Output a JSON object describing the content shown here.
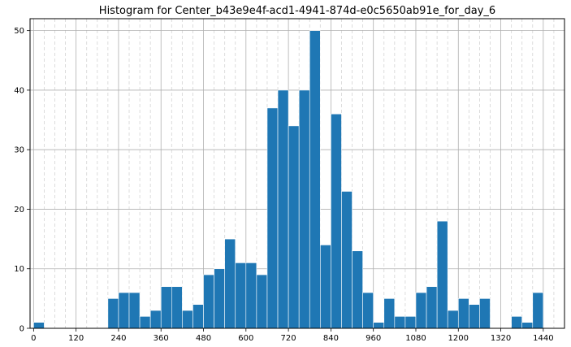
{
  "chart_data": {
    "type": "bar",
    "title": "Histogram for Center_b43e9e4f-acd1-4941-874d-e0c5650ab91e_for_day_6",
    "xlabel": "",
    "ylabel": "",
    "xlim": [
      -10,
      1500
    ],
    "ylim": [
      0,
      52
    ],
    "grid": true,
    "bin_width": 30,
    "bin_left_edges": [
      0,
      30,
      60,
      90,
      120,
      150,
      180,
      210,
      240,
      270,
      300,
      330,
      360,
      390,
      420,
      450,
      480,
      510,
      540,
      570,
      600,
      630,
      660,
      690,
      720,
      750,
      780,
      810,
      840,
      870,
      900,
      930,
      960,
      990,
      1020,
      1050,
      1080,
      1110,
      1140,
      1170,
      1200,
      1230,
      1260,
      1290,
      1320,
      1350,
      1380,
      1410
    ],
    "values": [
      1,
      0,
      0,
      0,
      0,
      0,
      0,
      5,
      6,
      6,
      2,
      3,
      7,
      7,
      3,
      4,
      9,
      10,
      15,
      11,
      11,
      9,
      37,
      40,
      34,
      40,
      50,
      14,
      36,
      23,
      13,
      6,
      1,
      5,
      2,
      2,
      6,
      7,
      18,
      3,
      5,
      4,
      5,
      0,
      0,
      2,
      1,
      6
    ],
    "x_ticks": [
      0,
      120,
      240,
      360,
      480,
      600,
      720,
      840,
      960,
      1080,
      1200,
      1320,
      1440
    ],
    "x_tick_labels": [
      "0",
      "120",
      "240",
      "360",
      "480",
      "600",
      "720",
      "840",
      "960",
      "1080",
      "1200",
      "1320",
      "1440"
    ],
    "y_ticks": [
      0,
      10,
      20,
      30,
      40,
      50
    ],
    "y_tick_labels": [
      "0",
      "10",
      "20",
      "30",
      "40",
      "50"
    ],
    "x_minor_step": 30,
    "bar_color": "#1f77b4",
    "edge_color": "#ffffff"
  }
}
